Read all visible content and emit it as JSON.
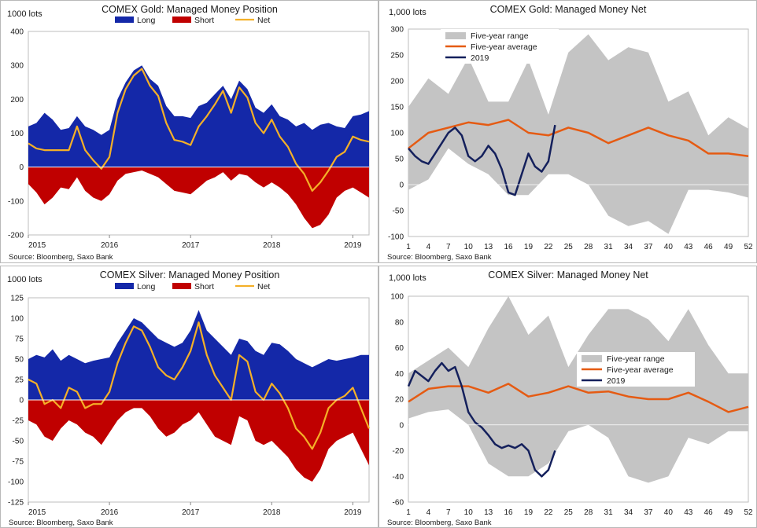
{
  "chart_data": [
    {
      "id": "gold_position",
      "type": "area",
      "title": "COMEX Gold: Managed Money Position",
      "unit_label": "1000 lots",
      "source": "Source: Bloomberg, Saxo Bank",
      "ylim": [
        -200,
        400
      ],
      "yticks": [
        -200,
        -100,
        0,
        100,
        200,
        300,
        400
      ],
      "x_range": [
        2015.0,
        2019.2
      ],
      "x_ticks": [
        2015,
        2016,
        2017,
        2018,
        2019
      ],
      "x_tick_labels": [
        "2015",
        "2016",
        "2017",
        "2018",
        "2019"
      ],
      "legend_placement": "top",
      "series": [
        {
          "name": "Long",
          "kind": "area",
          "color": "#1428a8",
          "x": [
            2015.0,
            2015.1,
            2015.2,
            2015.3,
            2015.4,
            2015.5,
            2015.6,
            2015.7,
            2015.8,
            2015.9,
            2016.0,
            2016.1,
            2016.2,
            2016.3,
            2016.4,
            2016.5,
            2016.6,
            2016.7,
            2016.8,
            2016.9,
            2017.0,
            2017.1,
            2017.2,
            2017.3,
            2017.4,
            2017.5,
            2017.6,
            2017.7,
            2017.8,
            2017.9,
            2018.0,
            2018.1,
            2018.2,
            2018.3,
            2018.4,
            2018.5,
            2018.6,
            2018.7,
            2018.8,
            2018.9,
            2019.0,
            2019.1,
            2019.2
          ],
          "y": [
            120,
            130,
            160,
            140,
            110,
            115,
            150,
            120,
            110,
            95,
            110,
            200,
            250,
            285,
            300,
            260,
            240,
            180,
            150,
            150,
            145,
            180,
            190,
            215,
            240,
            200,
            255,
            230,
            175,
            160,
            185,
            150,
            140,
            120,
            130,
            110,
            125,
            130,
            120,
            115,
            150,
            155,
            165
          ]
        },
        {
          "name": "Short",
          "kind": "area",
          "color": "#c00000",
          "x": [
            2015.0,
            2015.1,
            2015.2,
            2015.3,
            2015.4,
            2015.5,
            2015.6,
            2015.7,
            2015.8,
            2015.9,
            2016.0,
            2016.1,
            2016.2,
            2016.3,
            2016.4,
            2016.5,
            2016.6,
            2016.7,
            2016.8,
            2016.9,
            2017.0,
            2017.1,
            2017.2,
            2017.3,
            2017.4,
            2017.5,
            2017.6,
            2017.7,
            2017.8,
            2017.9,
            2018.0,
            2018.1,
            2018.2,
            2018.3,
            2018.4,
            2018.5,
            2018.6,
            2018.7,
            2018.8,
            2018.9,
            2019.0,
            2019.1,
            2019.2
          ],
          "y": [
            -50,
            -75,
            -110,
            -90,
            -60,
            -65,
            -30,
            -70,
            -90,
            -100,
            -80,
            -40,
            -20,
            -15,
            -10,
            -20,
            -30,
            -50,
            -70,
            -75,
            -80,
            -60,
            -40,
            -30,
            -15,
            -40,
            -20,
            -25,
            -45,
            -60,
            -45,
            -60,
            -80,
            -110,
            -150,
            -180,
            -170,
            -140,
            -90,
            -70,
            -60,
            -75,
            -90
          ]
        },
        {
          "name": "Net",
          "kind": "line",
          "color": "#f4b028",
          "x": [
            2015.0,
            2015.1,
            2015.2,
            2015.3,
            2015.4,
            2015.5,
            2015.6,
            2015.7,
            2015.8,
            2015.9,
            2016.0,
            2016.1,
            2016.2,
            2016.3,
            2016.4,
            2016.5,
            2016.6,
            2016.7,
            2016.8,
            2016.9,
            2017.0,
            2017.1,
            2017.2,
            2017.3,
            2017.4,
            2017.5,
            2017.6,
            2017.7,
            2017.8,
            2017.9,
            2018.0,
            2018.1,
            2018.2,
            2018.3,
            2018.4,
            2018.5,
            2018.6,
            2018.7,
            2018.8,
            2018.9,
            2019.0,
            2019.1,
            2019.2
          ],
          "y": [
            70,
            55,
            50,
            50,
            50,
            50,
            120,
            50,
            20,
            -5,
            30,
            160,
            230,
            270,
            290,
            240,
            210,
            130,
            80,
            75,
            65,
            120,
            150,
            185,
            225,
            160,
            235,
            205,
            130,
            100,
            140,
            90,
            60,
            10,
            -20,
            -70,
            -45,
            -10,
            30,
            45,
            90,
            80,
            75
          ]
        }
      ]
    },
    {
      "id": "gold_net",
      "type": "line",
      "title": "COMEX Gold: Managed Money Net",
      "unit_label": "1,000 lots",
      "source": "Source: Bloomberg, Saxo Bank",
      "ylim": [
        -100,
        300
      ],
      "yticks": [
        -100,
        -50,
        0,
        50,
        100,
        150,
        200,
        250,
        300
      ],
      "x_range": [
        1,
        52
      ],
      "x_ticks": [
        1,
        4,
        7,
        10,
        13,
        16,
        19,
        22,
        25,
        28,
        31,
        34,
        37,
        40,
        43,
        46,
        49,
        52
      ],
      "legend_placement": "top-left",
      "series": [
        {
          "name": "Five-year range",
          "kind": "band",
          "color": "#c4c4c4",
          "x": [
            1,
            4,
            7,
            10,
            13,
            16,
            19,
            22,
            25,
            28,
            31,
            34,
            37,
            40,
            43,
            46,
            49,
            52
          ],
          "upper": [
            150,
            205,
            175,
            245,
            160,
            160,
            240,
            135,
            255,
            290,
            240,
            265,
            255,
            160,
            180,
            95,
            130,
            108
          ],
          "lower": [
            -10,
            10,
            70,
            40,
            20,
            -20,
            -20,
            20,
            20,
            0,
            -60,
            -80,
            -70,
            -95,
            -10,
            -10,
            -15,
            -25
          ]
        },
        {
          "name": "Five-year average",
          "kind": "line",
          "color": "#e55b13",
          "x": [
            1,
            4,
            7,
            10,
            13,
            16,
            19,
            22,
            25,
            28,
            31,
            34,
            37,
            40,
            43,
            46,
            49,
            52
          ],
          "y": [
            70,
            100,
            110,
            120,
            115,
            125,
            100,
            95,
            110,
            100,
            80,
            95,
            110,
            95,
            85,
            60,
            60,
            55
          ]
        },
        {
          "name": "2019",
          "kind": "line",
          "color": "#14205c",
          "x": [
            1,
            2,
            3,
            4,
            5,
            6,
            7,
            8,
            9,
            10,
            11,
            12,
            13,
            14,
            15,
            16,
            17,
            18,
            19,
            20,
            21,
            22,
            23
          ],
          "y": [
            70,
            55,
            45,
            40,
            60,
            80,
            100,
            110,
            95,
            55,
            45,
            55,
            75,
            60,
            30,
            -15,
            -20,
            20,
            60,
            35,
            25,
            45,
            115
          ]
        }
      ]
    },
    {
      "id": "silver_position",
      "type": "area",
      "title": "COMEX Silver: Managed Money Position",
      "unit_label": "1000 lots",
      "source": "Source: Bloomberg, Saxo Bank",
      "ylim": [
        -125,
        125
      ],
      "yticks": [
        -125,
        -100,
        -75,
        -50,
        -25,
        0,
        25,
        50,
        75,
        100,
        125
      ],
      "x_range": [
        2015.0,
        2019.2
      ],
      "x_ticks": [
        2015,
        2016,
        2017,
        2018,
        2019
      ],
      "x_tick_labels": [
        "2015",
        "2016",
        "2017",
        "2018",
        "2019"
      ],
      "legend_placement": "top",
      "series": [
        {
          "name": "Long",
          "kind": "area",
          "color": "#1428a8",
          "x": [
            2015.0,
            2015.1,
            2015.2,
            2015.3,
            2015.4,
            2015.5,
            2015.6,
            2015.7,
            2015.8,
            2015.9,
            2016.0,
            2016.1,
            2016.2,
            2016.3,
            2016.4,
            2016.5,
            2016.6,
            2016.7,
            2016.8,
            2016.9,
            2017.0,
            2017.1,
            2017.2,
            2017.3,
            2017.4,
            2017.5,
            2017.6,
            2017.7,
            2017.8,
            2017.9,
            2018.0,
            2018.1,
            2018.2,
            2018.3,
            2018.4,
            2018.5,
            2018.6,
            2018.7,
            2018.8,
            2018.9,
            2019.0,
            2019.1,
            2019.2
          ],
          "y": [
            50,
            55,
            52,
            62,
            48,
            55,
            50,
            45,
            48,
            50,
            52,
            70,
            85,
            100,
            95,
            85,
            75,
            70,
            65,
            70,
            85,
            110,
            85,
            75,
            65,
            55,
            75,
            72,
            60,
            55,
            70,
            68,
            60,
            50,
            45,
            40,
            45,
            50,
            48,
            50,
            52,
            55,
            55
          ]
        },
        {
          "name": "Short",
          "kind": "area",
          "color": "#c00000",
          "x": [
            2015.0,
            2015.1,
            2015.2,
            2015.3,
            2015.4,
            2015.5,
            2015.6,
            2015.7,
            2015.8,
            2015.9,
            2016.0,
            2016.1,
            2016.2,
            2016.3,
            2016.4,
            2016.5,
            2016.6,
            2016.7,
            2016.8,
            2016.9,
            2017.0,
            2017.1,
            2017.2,
            2017.3,
            2017.4,
            2017.5,
            2017.6,
            2017.7,
            2017.8,
            2017.9,
            2018.0,
            2018.1,
            2018.2,
            2018.3,
            2018.4,
            2018.5,
            2018.6,
            2018.7,
            2018.8,
            2018.9,
            2019.0,
            2019.1,
            2019.2
          ],
          "y": [
            -25,
            -30,
            -45,
            -50,
            -35,
            -25,
            -30,
            -40,
            -45,
            -55,
            -40,
            -25,
            -15,
            -10,
            -10,
            -20,
            -35,
            -45,
            -40,
            -30,
            -25,
            -15,
            -30,
            -45,
            -50,
            -55,
            -20,
            -25,
            -50,
            -55,
            -50,
            -60,
            -70,
            -85,
            -95,
            -100,
            -85,
            -60,
            -50,
            -45,
            -40,
            -60,
            -80
          ]
        },
        {
          "name": "Net",
          "kind": "line",
          "color": "#f4b028",
          "x": [
            2015.0,
            2015.1,
            2015.2,
            2015.3,
            2015.4,
            2015.5,
            2015.6,
            2015.7,
            2015.8,
            2015.9,
            2016.0,
            2016.1,
            2016.2,
            2016.3,
            2016.4,
            2016.5,
            2016.6,
            2016.7,
            2016.8,
            2016.9,
            2017.0,
            2017.1,
            2017.2,
            2017.3,
            2017.4,
            2017.5,
            2017.6,
            2017.7,
            2017.8,
            2017.9,
            2018.0,
            2018.1,
            2018.2,
            2018.3,
            2018.4,
            2018.5,
            2018.6,
            2018.7,
            2018.8,
            2018.9,
            2019.0,
            2019.1,
            2019.2
          ],
          "y": [
            25,
            20,
            -5,
            0,
            -10,
            15,
            10,
            -10,
            -5,
            -5,
            10,
            45,
            70,
            90,
            85,
            65,
            40,
            30,
            25,
            40,
            60,
            95,
            55,
            30,
            15,
            0,
            55,
            47,
            10,
            0,
            20,
            8,
            -10,
            -35,
            -45,
            -60,
            -40,
            -10,
            0,
            5,
            15,
            -10,
            -35
          ]
        }
      ]
    },
    {
      "id": "silver_net",
      "type": "line",
      "title": "COMEX Silver: Managed Money Net",
      "unit_label": "1,000 lots",
      "source": "Source: Bloomberg, Saxo Bank",
      "ylim": [
        -60,
        100
      ],
      "yticks": [
        -60,
        -40,
        -20,
        0,
        20,
        40,
        60,
        80,
        100
      ],
      "x_range": [
        1,
        52
      ],
      "x_ticks": [
        1,
        4,
        7,
        10,
        13,
        16,
        19,
        22,
        25,
        28,
        31,
        34,
        37,
        40,
        43,
        46,
        49,
        52
      ],
      "legend_placement": "right",
      "series": [
        {
          "name": "Five-year range",
          "kind": "band",
          "color": "#c4c4c4",
          "x": [
            1,
            4,
            7,
            10,
            13,
            16,
            19,
            22,
            25,
            28,
            31,
            34,
            37,
            40,
            43,
            46,
            49,
            52
          ],
          "upper": [
            40,
            50,
            60,
            45,
            75,
            100,
            70,
            85,
            45,
            70,
            90,
            90,
            82,
            65,
            90,
            62,
            40,
            40
          ],
          "lower": [
            5,
            10,
            12,
            0,
            -30,
            -40,
            -40,
            -30,
            -5,
            0,
            -10,
            -40,
            -45,
            -40,
            -10,
            -15,
            -5,
            -5
          ]
        },
        {
          "name": "Five-year average",
          "kind": "line",
          "color": "#e55b13",
          "x": [
            1,
            4,
            7,
            10,
            13,
            16,
            19,
            22,
            25,
            28,
            31,
            34,
            37,
            40,
            43,
            46,
            49,
            52
          ],
          "y": [
            18,
            28,
            30,
            30,
            25,
            32,
            22,
            25,
            30,
            25,
            26,
            22,
            20,
            20,
            25,
            18,
            10,
            14
          ]
        },
        {
          "name": "2019",
          "kind": "line",
          "color": "#14205c",
          "x": [
            1,
            2,
            3,
            4,
            5,
            6,
            7,
            8,
            9,
            10,
            11,
            12,
            13,
            14,
            15,
            16,
            17,
            18,
            19,
            20,
            21,
            22,
            23
          ],
          "y": [
            30,
            42,
            38,
            34,
            42,
            48,
            42,
            45,
            30,
            10,
            2,
            -2,
            -8,
            -15,
            -18,
            -16,
            -18,
            -15,
            -20,
            -35,
            -40,
            -35,
            -20
          ]
        }
      ]
    }
  ]
}
